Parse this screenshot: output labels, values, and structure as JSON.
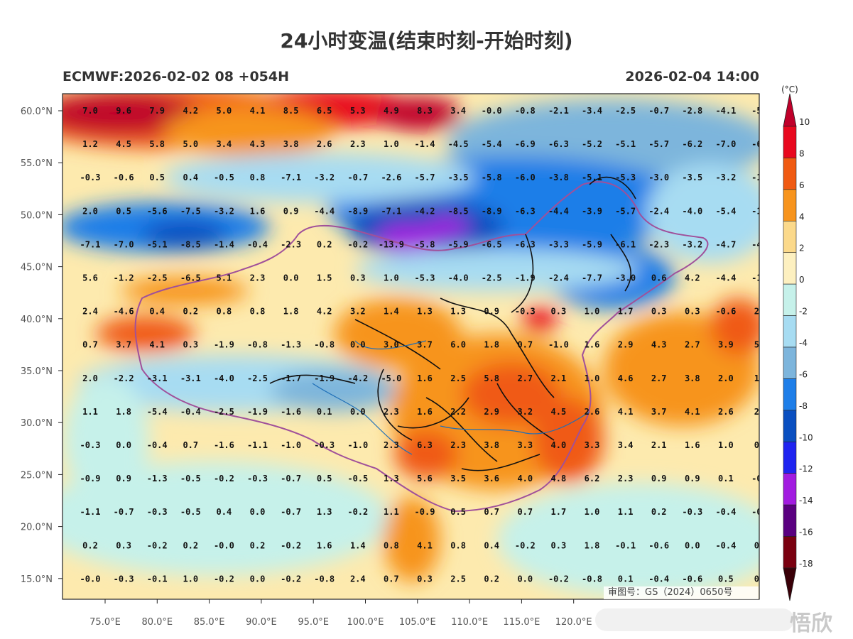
{
  "title": "24小时变温(结束时刻-开始时刻)",
  "model_run": "ECMWF:2026-02-02 08 +054H",
  "valid_time": "2026-02-04 14:00",
  "unit": "(°C)",
  "approval_number": "审图号：GS（2024）0650号",
  "watermark": "悟欣",
  "lat_labels": [
    "60.0°N",
    "55.0°N",
    "50.0°N",
    "45.0°N",
    "40.0°N",
    "35.0°N",
    "30.0°N",
    "25.0°N",
    "20.0°N",
    "15.0°N"
  ],
  "lon_labels": [
    "75.0°E",
    "80.0°E",
    "85.0°E",
    "90.0°E",
    "95.0°E",
    "100.0°E",
    "105.0°E",
    "110.0°E",
    "115.0°E",
    "120.0°E"
  ],
  "colorbar": {
    "levels": [
      "10",
      "8",
      "6",
      "4",
      "2",
      "0",
      "-2",
      "-4",
      "-6",
      "-8",
      "-10",
      "-12",
      "-14",
      "-16",
      "-18"
    ],
    "colors": [
      "#c0002a",
      "#e8081e",
      "#f05a12",
      "#f7941d",
      "#fbd98b",
      "#fdf0c0",
      "#c6f1ea",
      "#a7dcf2",
      "#7db5dc",
      "#1e7ee8",
      "#0a4fc0",
      "#1f24f0",
      "#a21ce0",
      "#5a0080",
      "#7a0010"
    ]
  },
  "grid_values": [
    [
      "7.0",
      "9.6",
      "7.9",
      "4.2",
      "5.0",
      "4.1",
      "8.5",
      "6.5",
      "5.3",
      "4.9",
      "8.3",
      "3.4",
      "-0.0",
      "-0.8",
      "-2.1",
      "-3.4",
      "-2.5",
      "-0.7",
      "-2.8",
      "-4.1",
      "-5."
    ],
    [
      "1.2",
      "4.5",
      "5.8",
      "5.0",
      "3.4",
      "4.3",
      "3.8",
      "2.6",
      "2.3",
      "1.0",
      "-1.4",
      "-4.5",
      "-5.4",
      "-6.9",
      "-6.3",
      "-5.2",
      "-5.1",
      "-5.7",
      "-6.2",
      "-7.0",
      "-6."
    ],
    [
      "-0.3",
      "-0.6",
      "0.5",
      "0.4",
      "-0.5",
      "0.8",
      "-7.1",
      "-3.2",
      "-0.7",
      "-2.6",
      "-5.7",
      "-3.5",
      "-5.8",
      "-6.0",
      "-3.8",
      "-5.1",
      "-5.3",
      "-3.0",
      "-3.5",
      "-3.2",
      "-1."
    ],
    [
      "2.0",
      "0.5",
      "-5.6",
      "-7.5",
      "-3.2",
      "1.6",
      "0.9",
      "-4.4",
      "-8.9",
      "-7.1",
      "-4.2",
      "-8.5",
      "-8.9",
      "-6.3",
      "-4.4",
      "-3.9",
      "-5.7",
      "-2.4",
      "-4.0",
      "-5.4",
      "-1."
    ],
    [
      "-7.1",
      "-7.0",
      "-5.1",
      "-8.5",
      "-1.4",
      "-0.4",
      "-2.3",
      "0.2",
      "-0.2",
      "-13.9",
      "-5.8",
      "-5.9",
      "-6.5",
      "-6.3",
      "-3.3",
      "-5.9",
      "-6.1",
      "-2.3",
      "-3.2",
      "-4.7",
      "-4."
    ],
    [
      "5.6",
      "-1.2",
      "-2.5",
      "-6.5",
      "5.1",
      "2.3",
      "0.0",
      "1.5",
      "0.3",
      "1.0",
      "-5.3",
      "-4.0",
      "-2.5",
      "-1.9",
      "-2.4",
      "-7.7",
      "-3.0",
      "0.6",
      "4.2",
      "-4.4",
      "-1."
    ],
    [
      "2.4",
      "-4.6",
      "0.4",
      "0.2",
      "0.8",
      "0.8",
      "1.8",
      "4.2",
      "3.2",
      "1.4",
      "1.3",
      "1.3",
      "0.9",
      "-0.3",
      "0.3",
      "1.0",
      "1.7",
      "0.3",
      "0.3",
      "-0.6",
      "2."
    ],
    [
      "0.7",
      "3.7",
      "4.1",
      "0.3",
      "-1.9",
      "-0.8",
      "-1.3",
      "-0.8",
      "0.0",
      "3.0",
      "3.7",
      "6.0",
      "1.8",
      "0.7",
      "-1.0",
      "1.6",
      "2.9",
      "4.3",
      "2.7",
      "3.9",
      "5."
    ],
    [
      "2.0",
      "-2.2",
      "-3.1",
      "-3.1",
      "-4.0",
      "-2.5",
      "-1.7",
      "-1.9",
      "-4.2",
      "-5.0",
      "1.6",
      "2.5",
      "5.8",
      "2.7",
      "2.1",
      "1.0",
      "4.6",
      "2.7",
      "3.8",
      "2.0",
      "1."
    ],
    [
      "1.1",
      "1.8",
      "-5.4",
      "-0.4",
      "-2.5",
      "-1.9",
      "-1.6",
      "0.1",
      "0.0",
      "2.3",
      "1.6",
      "2.2",
      "2.9",
      "3.2",
      "4.5",
      "2.6",
      "4.1",
      "3.7",
      "4.1",
      "2.6",
      "2."
    ],
    [
      "-0.3",
      "0.0",
      "-0.4",
      "0.7",
      "-1.6",
      "-1.1",
      "-1.0",
      "-0.3",
      "-1.0",
      "2.3",
      "6.3",
      "2.3",
      "3.8",
      "3.3",
      "4.0",
      "3.3",
      "3.4",
      "2.1",
      "1.6",
      "1.0",
      "0."
    ],
    [
      "-0.9",
      "0.9",
      "-1.3",
      "-0.5",
      "-0.2",
      "-0.3",
      "-0.7",
      "0.5",
      "-0.5",
      "1.3",
      "5.6",
      "3.5",
      "3.6",
      "4.0",
      "4.8",
      "6.2",
      "2.3",
      "0.9",
      "0.9",
      "0.1",
      "-0."
    ],
    [
      "-1.1",
      "-0.7",
      "-0.3",
      "-0.5",
      "0.4",
      "0.0",
      "-0.7",
      "1.3",
      "-0.2",
      "1.1",
      "-0.9",
      "0.5",
      "0.7",
      "0.7",
      "1.7",
      "1.0",
      "1.1",
      "0.2",
      "-0.3",
      "-0.4",
      "-0."
    ],
    [
      "0.2",
      "0.3",
      "-0.2",
      "0.2",
      "-0.0",
      "0.2",
      "-0.2",
      "1.6",
      "1.4",
      "0.8",
      "4.1",
      "0.8",
      "0.4",
      "-0.2",
      "0.3",
      "1.8",
      "-0.1",
      "-0.6",
      "0.0",
      "-0.4",
      "0."
    ],
    [
      "-0.0",
      "-0.3",
      "-0.1",
      "1.0",
      "-0.2",
      "0.0",
      "-0.2",
      "-0.8",
      "2.4",
      "0.7",
      "0.3",
      "2.5",
      "0.2",
      "0.0",
      "-0.2",
      "-0.8",
      "0.1",
      "-0.4",
      "-0.6",
      "0.5",
      "0."
    ]
  ]
}
